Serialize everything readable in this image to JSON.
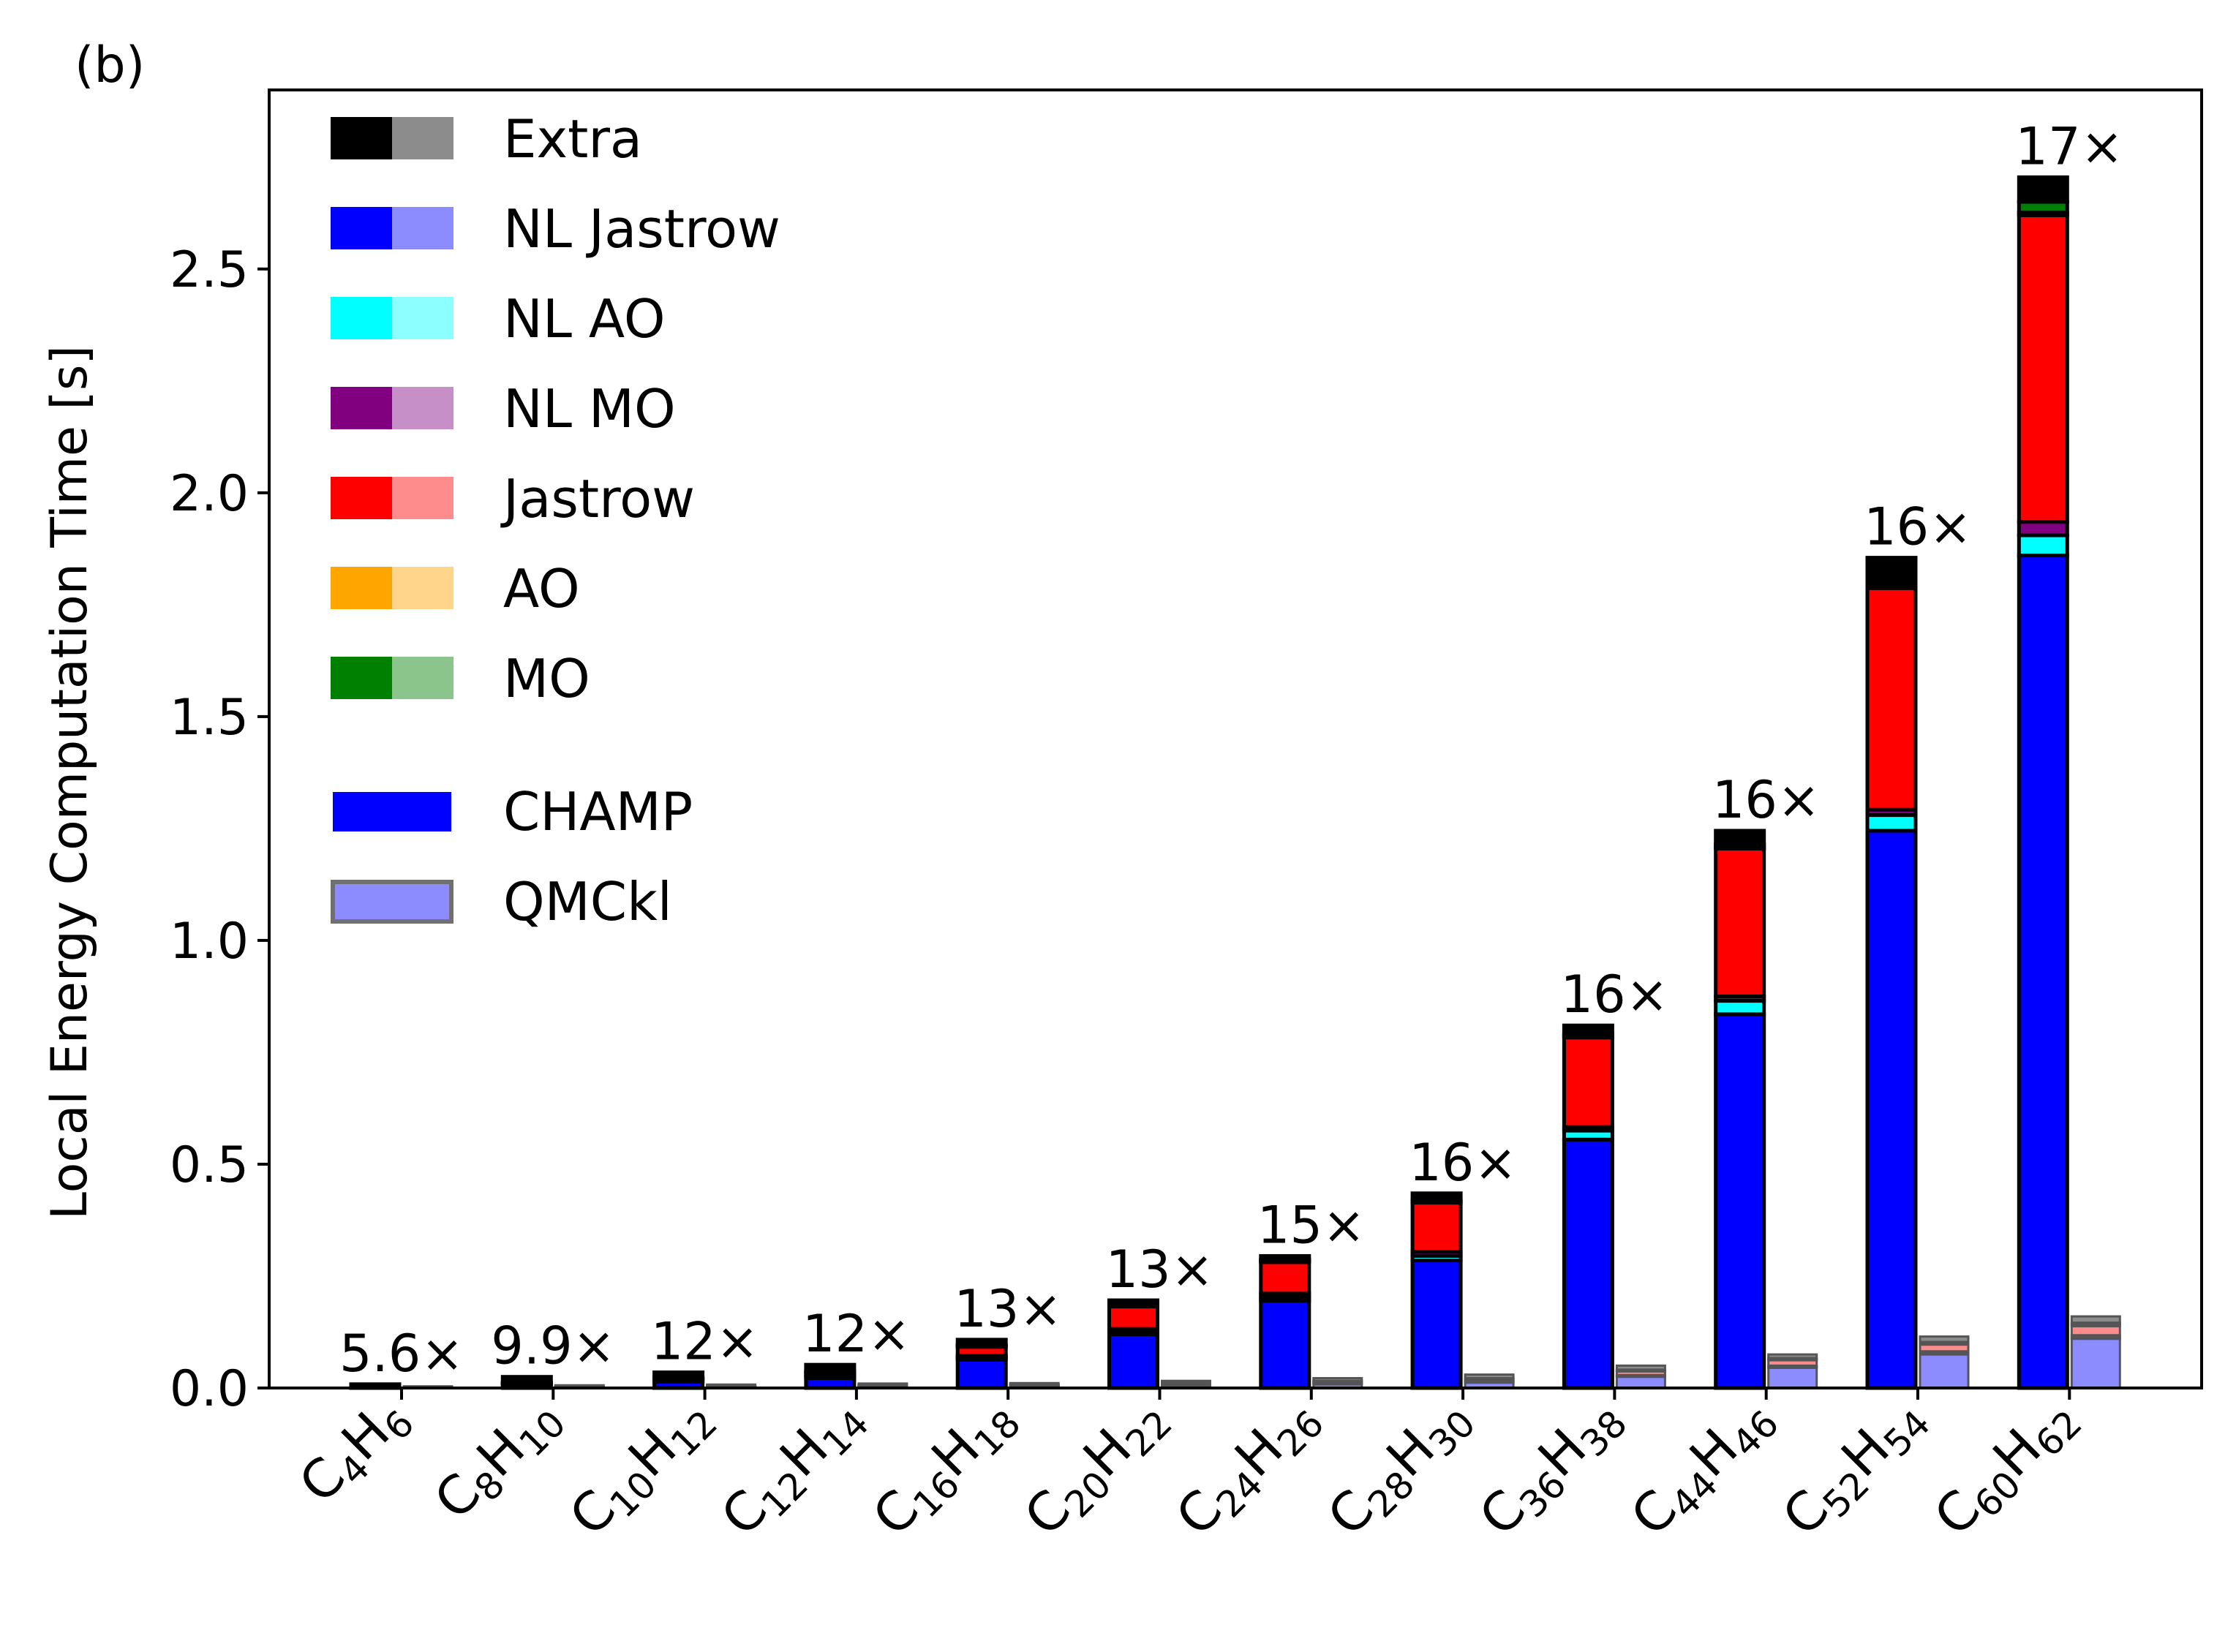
{
  "panel_label": "(b)",
  "colors": {
    "Extra": [
      "#000000",
      "#8c8c8c"
    ],
    "NL Jastrow": [
      "#0000ff",
      "#8c8cff"
    ],
    "NL AO": [
      "#00ffff",
      "#8cffff"
    ],
    "NL MO": [
      "#800080",
      "#c78fc7"
    ],
    "Jastrow": [
      "#ff0000",
      "#ff8c8c"
    ],
    "AO": [
      "#ffa500",
      "#ffd58c"
    ],
    "MO": [
      "#008000",
      "#8cc58c"
    ]
  },
  "chart_data": {
    "type": "bar",
    "stacked": true,
    "title": "",
    "ylabel": "Local Energy Computation Time [s]",
    "xlabel": "",
    "ylim": [
      0,
      2.9
    ],
    "yticks": [
      "0.0",
      "0.5",
      "1.0",
      "1.5",
      "2.0",
      "2.5"
    ],
    "categories": [
      {
        "C": "4",
        "H": "6"
      },
      {
        "C": "8",
        "H": "10"
      },
      {
        "C": "10",
        "H": "12"
      },
      {
        "C": "12",
        "H": "14"
      },
      {
        "C": "16",
        "H": "18"
      },
      {
        "C": "20",
        "H": "22"
      },
      {
        "C": "24",
        "H": "26"
      },
      {
        "C": "28",
        "H": "30"
      },
      {
        "C": "36",
        "H": "38"
      },
      {
        "C": "44",
        "H": "46"
      },
      {
        "C": "52",
        "H": "54"
      },
      {
        "C": "60",
        "H": "62"
      }
    ],
    "speedups": [
      "5.6×",
      "9.9×",
      "12×",
      "12×",
      "13×",
      "13×",
      "15×",
      "16×",
      "16×",
      "16×",
      "16×",
      "17×"
    ],
    "stack_order": [
      "NL Jastrow",
      "NL AO",
      "NL MO",
      "Jastrow",
      "AO",
      "MO",
      "Extra"
    ],
    "series": [
      {
        "code": "CHAMP",
        "component": "NL Jastrow",
        "values": [
          0.002,
          0.008,
          0.014,
          0.022,
          0.063,
          0.12,
          0.195,
          0.285,
          0.555,
          0.835,
          1.245,
          1.86
        ]
      },
      {
        "code": "CHAMP",
        "component": "NL AO",
        "values": [
          0.0005,
          0.001,
          0.002,
          0.003,
          0.005,
          0.006,
          0.008,
          0.01,
          0.02,
          0.03,
          0.035,
          0.045
        ]
      },
      {
        "code": "CHAMP",
        "component": "NL MO",
        "values": [
          0.0005,
          0.001,
          0.002,
          0.003,
          0.004,
          0.006,
          0.008,
          0.009,
          0.008,
          0.01,
          0.012,
          0.03
        ]
      },
      {
        "code": "CHAMP",
        "component": "Jastrow",
        "values": [
          0.0005,
          0.001,
          0.003,
          0.005,
          0.02,
          0.05,
          0.07,
          0.11,
          0.2,
          0.33,
          0.495,
          0.685
        ]
      },
      {
        "code": "CHAMP",
        "component": "AO",
        "values": [
          0.0005,
          0.001,
          0.001,
          0.002,
          0.002,
          0.003,
          0.003,
          0.003,
          0.004,
          0.005,
          0.005,
          0.006
        ]
      },
      {
        "code": "CHAMP",
        "component": "MO",
        "values": [
          0.0005,
          0.001,
          0.001,
          0.002,
          0.002,
          0.003,
          0.003,
          0.003,
          0.004,
          0.005,
          0.005,
          0.024
        ]
      },
      {
        "code": "CHAMP",
        "component": "Extra",
        "values": [
          0.004,
          0.012,
          0.012,
          0.015,
          0.012,
          0.008,
          0.008,
          0.015,
          0.019,
          0.03,
          0.058,
          0.055
        ]
      },
      {
        "code": "QMCkl",
        "component": "NL Jastrow",
        "values": [
          0.001,
          0.002,
          0.002,
          0.003,
          0.004,
          0.006,
          0.008,
          0.012,
          0.025,
          0.045,
          0.075,
          0.11
        ]
      },
      {
        "code": "QMCkl",
        "component": "NL AO",
        "values": [
          0.0003,
          0.0005,
          0.0008,
          0.001,
          0.001,
          0.001,
          0.002,
          0.002,
          0.002,
          0.002,
          0.003,
          0.003
        ]
      },
      {
        "code": "QMCkl",
        "component": "NL MO",
        "values": [
          0.0003,
          0.0005,
          0.0008,
          0.001,
          0.001,
          0.001,
          0.001,
          0.002,
          0.002,
          0.003,
          0.004,
          0.005
        ]
      },
      {
        "code": "QMCkl",
        "component": "Jastrow",
        "values": [
          0.0003,
          0.0005,
          0.0008,
          0.001,
          0.001,
          0.002,
          0.003,
          0.004,
          0.008,
          0.012,
          0.015,
          0.02
        ]
      },
      {
        "code": "QMCkl",
        "component": "AO",
        "values": [
          0.0002,
          0.0003,
          0.0004,
          0.0005,
          0.0005,
          0.001,
          0.001,
          0.001,
          0.002,
          0.003,
          0.003,
          0.004
        ]
      },
      {
        "code": "QMCkl",
        "component": "MO",
        "values": [
          0.0002,
          0.0003,
          0.0004,
          0.0005,
          0.0005,
          0.001,
          0.001,
          0.001,
          0.002,
          0.002,
          0.003,
          0.004
        ]
      },
      {
        "code": "QMCkl",
        "component": "Extra",
        "values": [
          0.0015,
          0.002,
          0.0025,
          0.003,
          0.003,
          0.004,
          0.006,
          0.008,
          0.009,
          0.008,
          0.012,
          0.014
        ]
      }
    ],
    "legend": {
      "placement": "upper-left",
      "components": [
        "Extra",
        "NL Jastrow",
        "NL AO",
        "NL MO",
        "Jastrow",
        "AO",
        "MO"
      ],
      "codes": [
        "CHAMP",
        "QMCkl"
      ]
    }
  }
}
